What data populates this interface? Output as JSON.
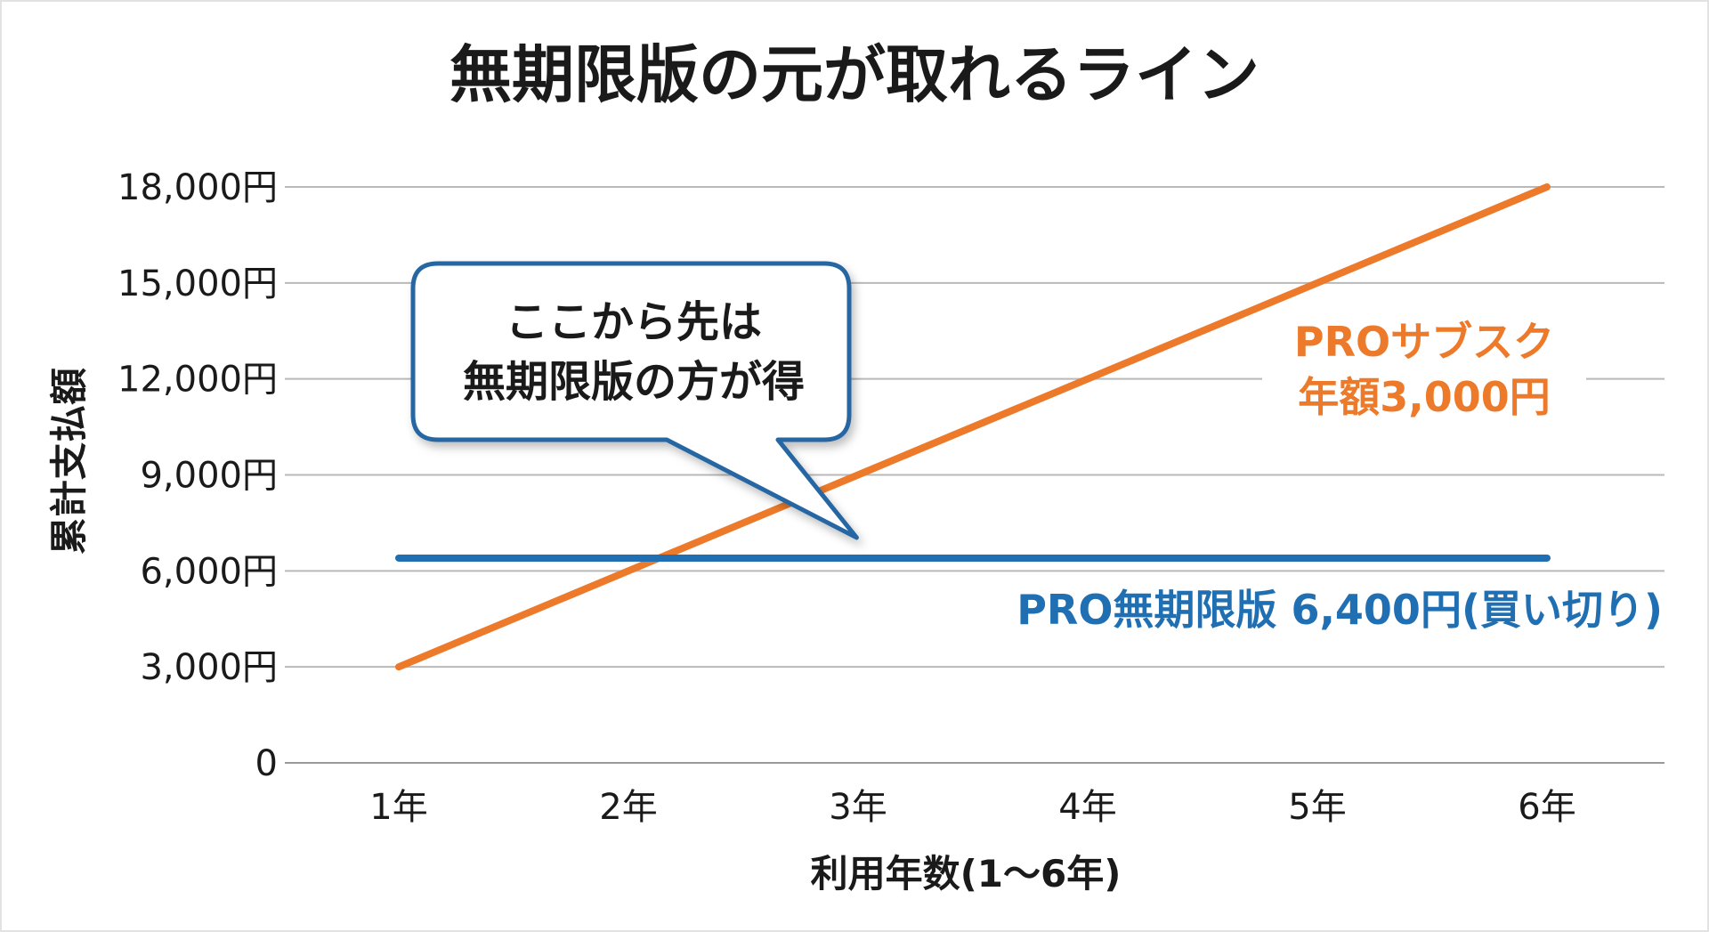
{
  "chart_data": {
    "type": "line",
    "title": "無期限版の元が取れるライン",
    "xlabel": "利用年数(1〜6年)",
    "ylabel": "累計支払額",
    "categories": [
      "1年",
      "2年",
      "3年",
      "4年",
      "5年",
      "6年"
    ],
    "y_ticks": [
      {
        "value": 0,
        "label": "0"
      },
      {
        "value": 3000,
        "label": "3,000円"
      },
      {
        "value": 6000,
        "label": "6,000円"
      },
      {
        "value": 9000,
        "label": "9,000円"
      },
      {
        "value": 12000,
        "label": "12,000円"
      },
      {
        "value": 15000,
        "label": "15,000円"
      },
      {
        "value": 18000,
        "label": "18,000円"
      }
    ],
    "ylim": [
      0,
      18000
    ],
    "grid": true,
    "series": [
      {
        "key": "subscription",
        "label_lines": [
          "PROサブスク",
          "年額3,000円"
        ],
        "color": "#ec7a2a",
        "values": [
          3000,
          6000,
          9000,
          12000,
          15000,
          18000
        ]
      },
      {
        "key": "perpetual",
        "label_lines": [
          "PRO無期限版 6,400円(買い切り)"
        ],
        "color": "#1f6fb2",
        "values": [
          6400,
          6400,
          6400,
          6400,
          6400,
          6400
        ]
      }
    ],
    "annotation": {
      "lines": [
        "ここから先は",
        "無期限版の方が得"
      ],
      "pointer_x": 2.8,
      "pointer_value": 6400
    }
  }
}
